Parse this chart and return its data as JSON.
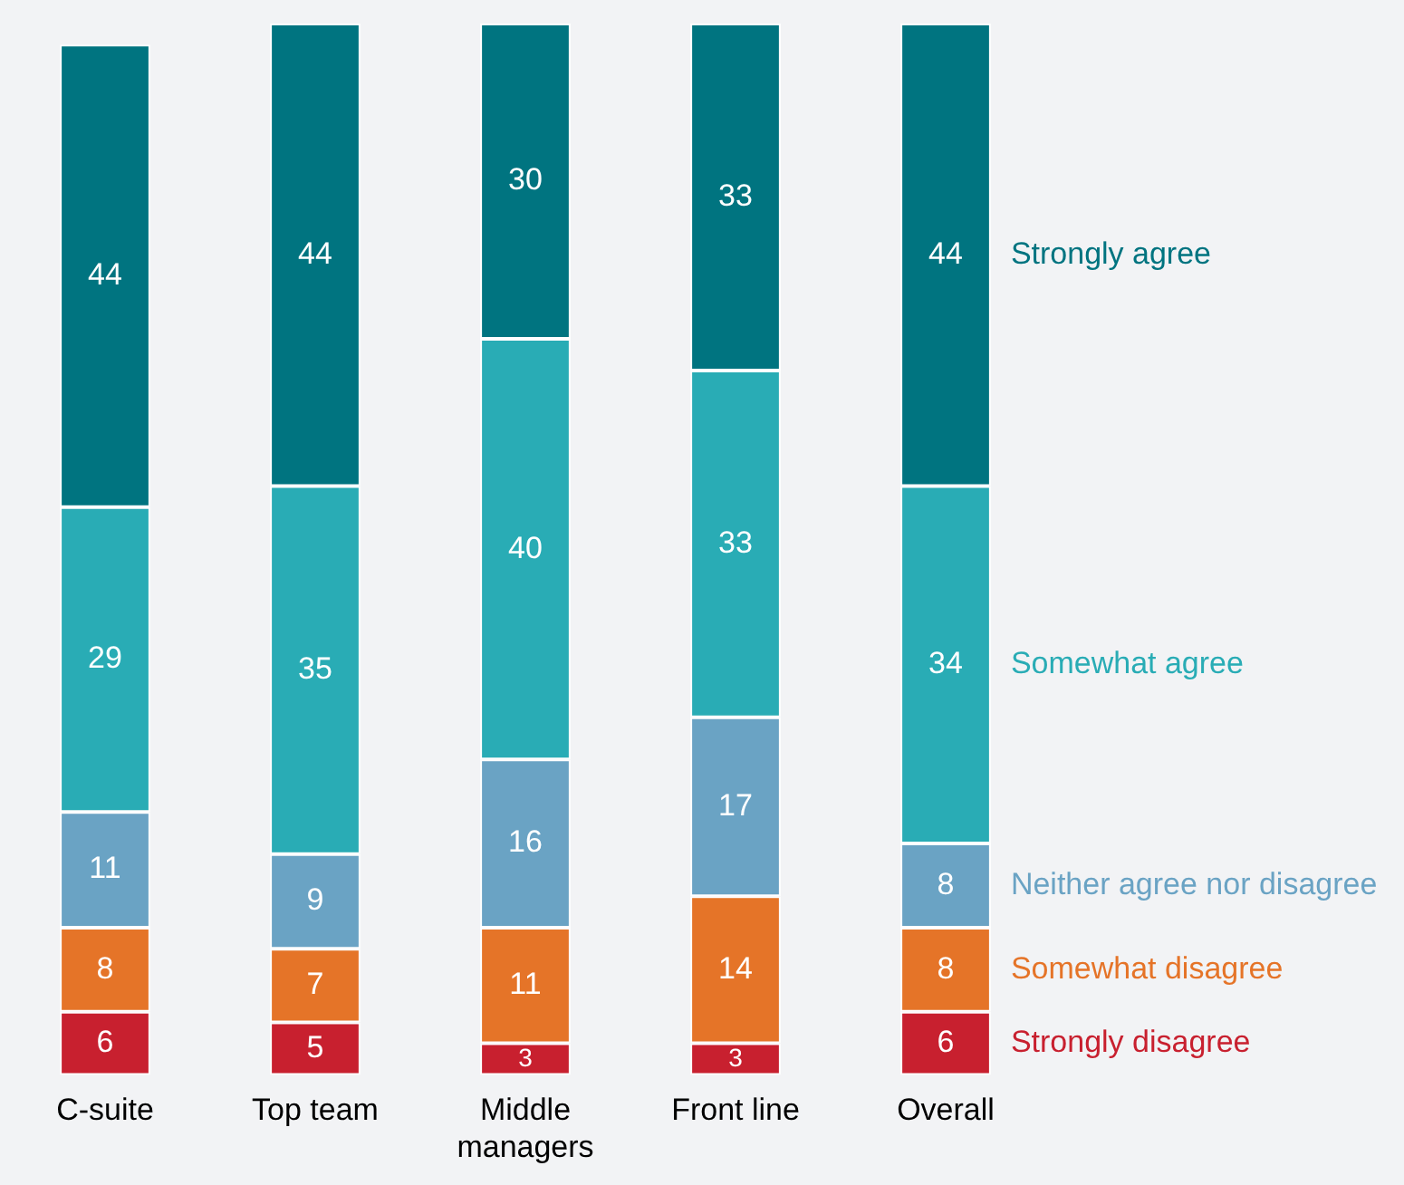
{
  "chart_data": {
    "type": "bar",
    "stacked": true,
    "categories": [
      "C-suite",
      "Top team",
      "Middle managers",
      "Front line",
      "Overall"
    ],
    "series": [
      {
        "name": "Strongly disagree",
        "color": "#c8202f",
        "values": [
          6,
          5,
          3,
          3,
          6
        ]
      },
      {
        "name": "Somewhat disagree",
        "color": "#e57428",
        "values": [
          8,
          7,
          11,
          14,
          8
        ]
      },
      {
        "name": "Neither agree nor disagree",
        "color": "#6aa3c4",
        "values": [
          11,
          9,
          16,
          17,
          8
        ]
      },
      {
        "name": "Somewhat agree",
        "color": "#29acb5",
        "values": [
          29,
          35,
          40,
          33,
          34
        ]
      },
      {
        "name": "Strongly agree",
        "color": "#007480",
        "values": [
          44,
          44,
          30,
          33,
          44
        ]
      }
    ],
    "ylim": [
      0,
      100
    ],
    "tick_labels": "x",
    "data_labels": true,
    "grid": false,
    "legend": false
  }
}
